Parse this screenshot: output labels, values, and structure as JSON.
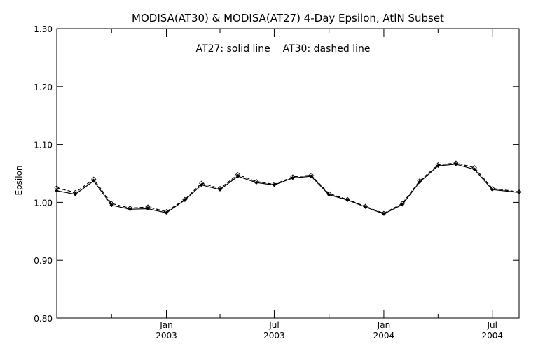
{
  "chart_data": {
    "type": "line",
    "title": "MODISA(AT30) & MODISA(AT27) 4-Day Epsilon, AtlN Subset",
    "annotation": "AT27: solid line    AT30: dashed line",
    "ylabel": "Epsilon",
    "xlabel": "",
    "ylim": [
      0.8,
      1.3
    ],
    "xlim": [
      "2002-07-01",
      "2004-08-15"
    ],
    "y_ticks": [
      "0.80",
      "0.90",
      "1.00",
      "1.10",
      "1.20",
      "1.30"
    ],
    "x_ticks": [
      {
        "date": "2003-01-01",
        "month": "Jan",
        "year": "2003"
      },
      {
        "date": "2003-07-01",
        "month": "Jul",
        "year": "2003"
      },
      {
        "date": "2004-01-01",
        "month": "Jan",
        "year": "2004"
      },
      {
        "date": "2004-07-01",
        "month": "Jul",
        "year": "2004"
      }
    ],
    "x_minor_ticks": [
      "2002-10-01",
      "2003-04-01",
      "2003-10-01",
      "2004-04-01"
    ],
    "grid": false,
    "x": [
      "2002-07-01",
      "2002-08-01",
      "2002-09-01",
      "2002-10-01",
      "2002-11-01",
      "2002-12-01",
      "2003-01-01",
      "2003-02-01",
      "2003-03-01",
      "2003-04-01",
      "2003-05-01",
      "2003-06-01",
      "2003-07-01",
      "2003-08-01",
      "2003-09-01",
      "2003-10-01",
      "2003-11-01",
      "2003-12-01",
      "2004-01-01",
      "2004-02-01",
      "2004-03-01",
      "2004-04-01",
      "2004-05-01",
      "2004-06-01",
      "2004-07-01",
      "2004-08-15"
    ],
    "series": [
      {
        "name": "AT27",
        "style": "solid",
        "values": [
          1.02,
          1.014,
          1.037,
          0.995,
          0.988,
          0.989,
          0.982,
          1.004,
          1.03,
          1.022,
          1.045,
          1.034,
          1.03,
          1.042,
          1.045,
          1.013,
          1.004,
          0.992,
          0.98,
          0.996,
          1.035,
          1.063,
          1.066,
          1.057,
          1.022,
          1.017
        ]
      },
      {
        "name": "AT30",
        "style": "dashed",
        "values": [
          1.025,
          1.017,
          1.04,
          0.998,
          0.99,
          0.992,
          0.984,
          1.005,
          1.033,
          1.024,
          1.048,
          1.036,
          1.031,
          1.044,
          1.047,
          1.015,
          1.005,
          0.993,
          0.981,
          0.998,
          1.037,
          1.065,
          1.068,
          1.06,
          1.024,
          1.018
        ]
      }
    ]
  }
}
